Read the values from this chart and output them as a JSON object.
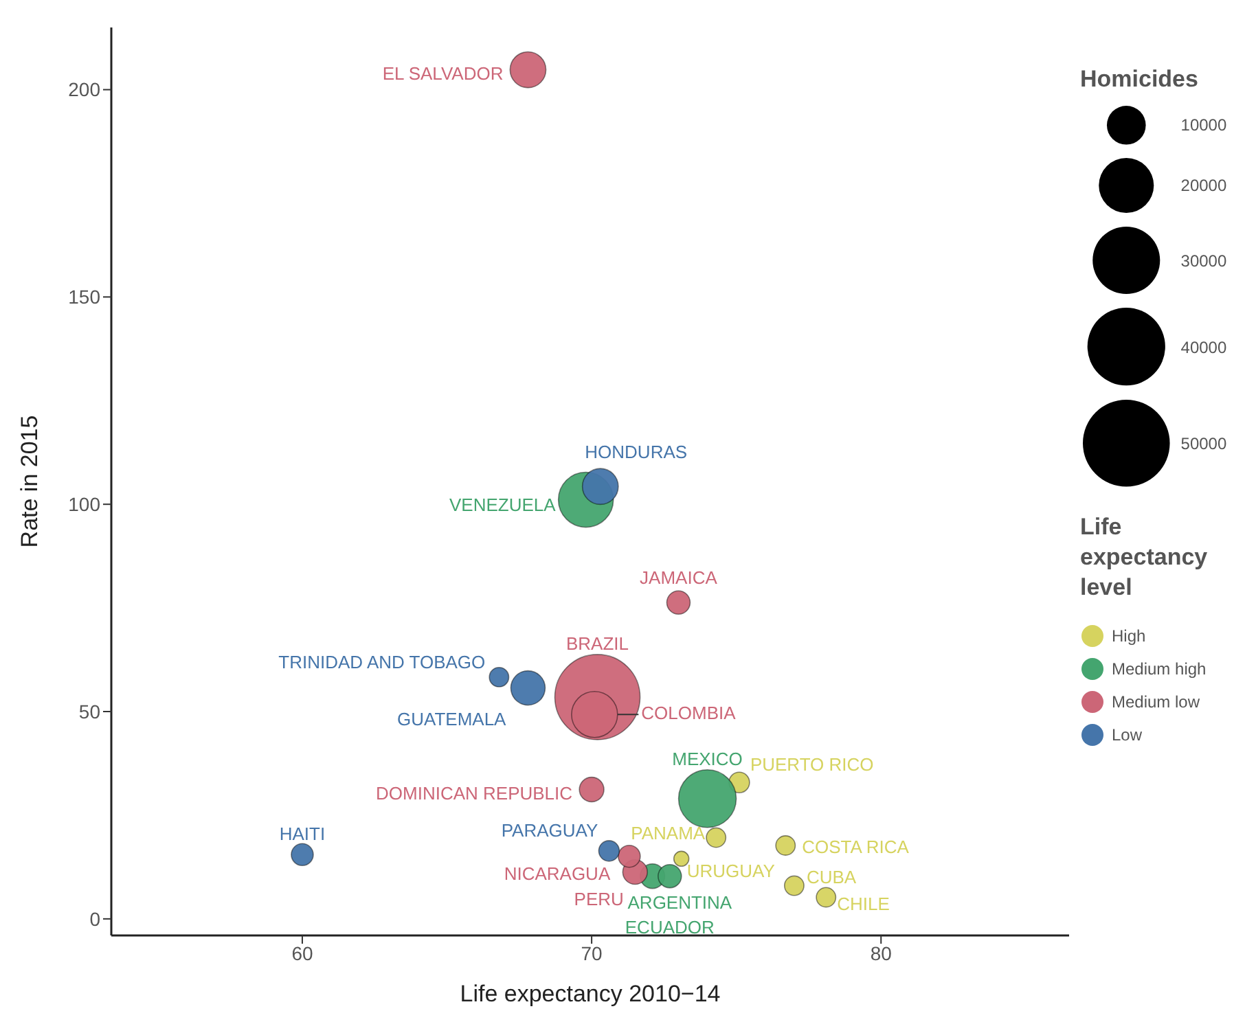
{
  "chart_data": {
    "type": "bubble",
    "xlabel": "Life expectancy 2010−14",
    "ylabel": "Rate in 2015",
    "legend_title": "Life expectancy level",
    "annotations": [
      "Homicides"
    ],
    "xlim": [
      53.4,
      86.5
    ],
    "xticks": [
      60,
      70,
      80
    ],
    "ylim": [
      -4,
      215
    ],
    "yticks": [
      0,
      50,
      100,
      150,
      200
    ],
    "grid": false,
    "legend": "right",
    "marker": "circle",
    "size_legend": [
      10000,
      20000,
      30000,
      40000,
      50000
    ],
    "series": [
      {
        "name": "High",
        "color": "#d6d35f",
        "x": [
          75.1,
          74.3,
          76.7,
          73.1,
          77.0,
          78.1
        ],
        "values": [
          32.9,
          19.6,
          17.7,
          14.5,
          8.0,
          5.2
        ],
        "sizes": [
          2800,
          2500,
          2500,
          1500,
          2500,
          2500
        ],
        "value_labels": [
          "PUERTO RICO",
          "PANAMA",
          "COSTA RICA",
          "URUGUAY",
          "CUBA",
          "CHILE"
        ]
      },
      {
        "name": "Medium high",
        "color": "#44a56f",
        "x": [
          69.8,
          74.0,
          72.1,
          72.7
        ],
        "values": [
          101.1,
          29.0,
          10.3,
          10.3
        ],
        "sizes": [
          20000,
          22000,
          4000,
          3600
        ],
        "value_labels": [
          "VENEZUELA",
          "MEXICO",
          "ARGENTINA",
          "ECUADOR"
        ]
      },
      {
        "name": "Medium low",
        "color": "#cc6677",
        "x": [
          67.8,
          73.0,
          70.2,
          70.1,
          70.0,
          71.5,
          71.3
        ],
        "values": [
          204.8,
          76.3,
          53.5,
          49.3,
          31.2,
          11.3,
          15.1
        ],
        "sizes": [
          8500,
          3600,
          48000,
          14000,
          4000,
          4000,
          3200
        ],
        "value_labels": [
          "EL SALVADOR",
          "JAMAICA",
          "BRAZIL",
          "COLOMBIA",
          "DOMINICAN REPUBLIC",
          "NICARAGUA",
          "PERU"
        ]
      },
      {
        "name": "Low",
        "color": "#4575aa",
        "x": [
          70.3,
          66.8,
          67.8,
          60.0,
          70.6
        ],
        "values": [
          104.3,
          58.3,
          55.7,
          15.5,
          16.4
        ],
        "sizes": [
          8500,
          2500,
          7800,
          3200,
          2800
        ],
        "value_labels": [
          "HONDURAS",
          "TRINIDAD AND TOBAGO",
          "GUATEMALA",
          "HAITI",
          "PARAGUAY"
        ]
      }
    ]
  }
}
